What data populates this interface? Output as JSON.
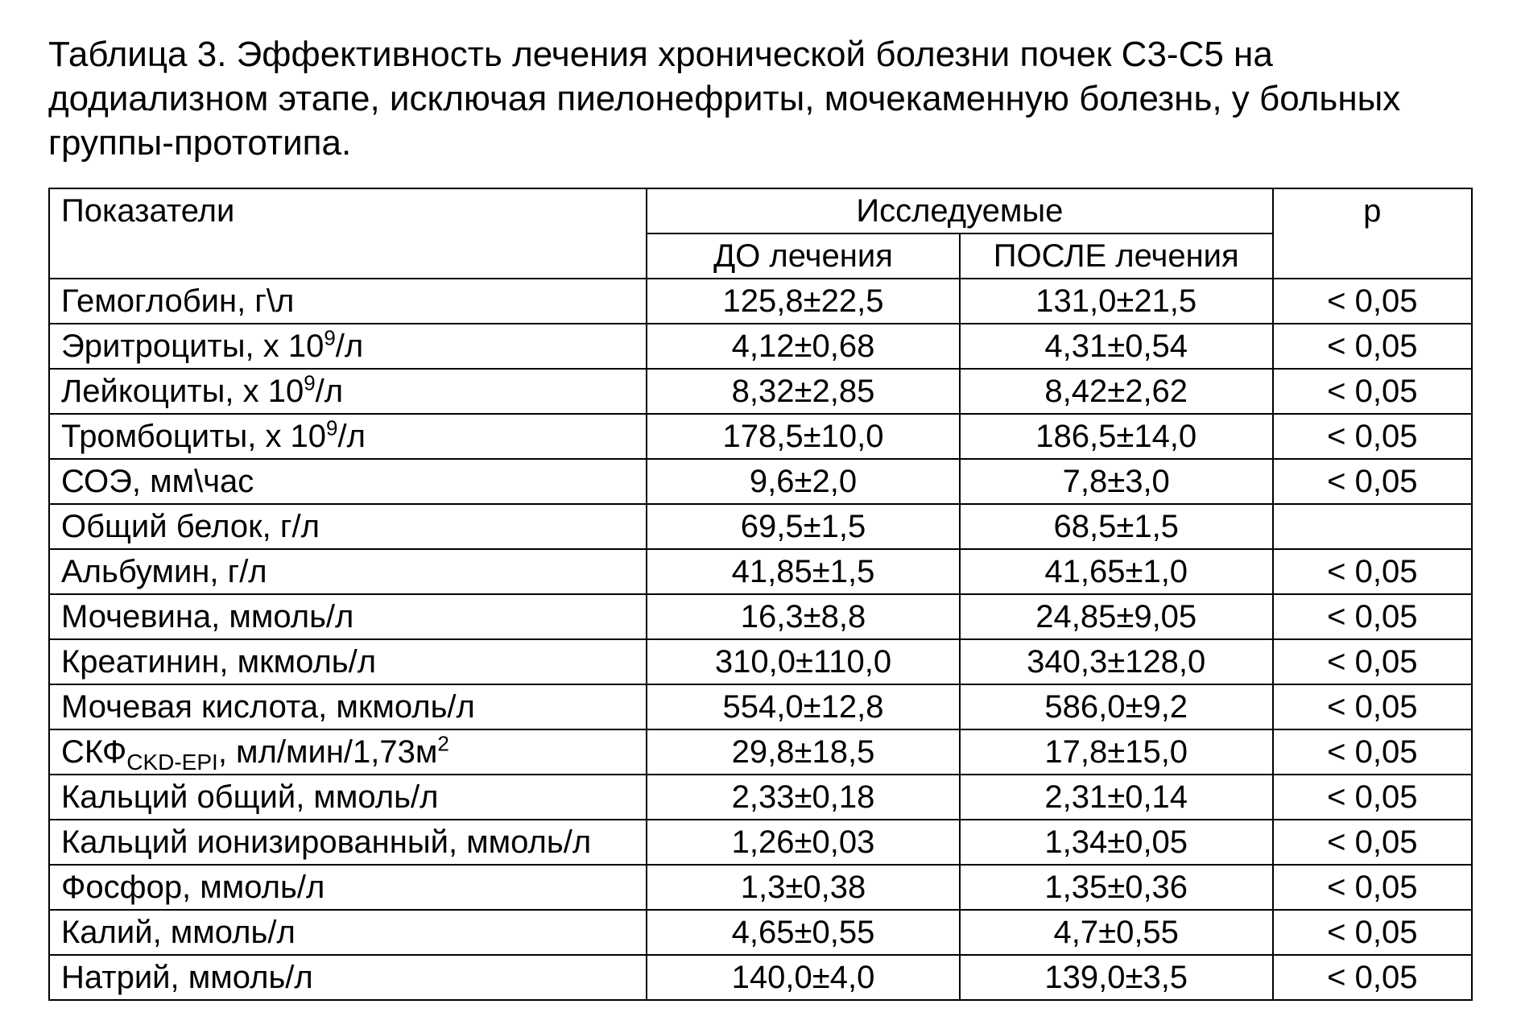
{
  "caption": "Таблица 3. Эффективность лечения хронической болезни почек С3-С5 на додиализном этапе, исключая пиелонефриты, мочекаменную болезнь, у больных группы-прототипа.",
  "headers": {
    "col_indicator": "Показатели",
    "col_group": "Исследуемые",
    "col_before": "ДО лечения",
    "col_after": "ПОСЛЕ лечения",
    "col_p": "p"
  },
  "table": {
    "background_color": "#ffffff",
    "border_color": "#000000",
    "font_size_pt": 30,
    "column_widths_percent": [
      42,
      22,
      22,
      14
    ],
    "rows": [
      {
        "label_html": "Гемоглобин, г\\л",
        "before": "125,8±22,5",
        "after": "131,0±21,5",
        "p": "< 0,05"
      },
      {
        "label_html": "Эритроциты, х 10<sup>9</sup>/л",
        "before": "4,12±0,68",
        "after": "4,31±0,54",
        "p": "< 0,05"
      },
      {
        "label_html": "Лейкоциты, х 10<sup>9</sup>/л",
        "before": "8,32±2,85",
        "after": "8,42±2,62",
        "p": "< 0,05"
      },
      {
        "label_html": "Тромбоциты, х 10<sup>9</sup>/л",
        "before": "178,5±10,0",
        "after": "186,5±14,0",
        "p": "< 0,05"
      },
      {
        "label_html": "СОЭ, мм\\час",
        "before": "9,6±2,0",
        "after": "7,8±3,0",
        "p": "< 0,05"
      },
      {
        "label_html": "Общий белок, г/л",
        "before": "69,5±1,5",
        "after": "68,5±1,5",
        "p": ""
      },
      {
        "label_html": "Альбумин, г/л",
        "before": "41,85±1,5",
        "after": "41,65±1,0",
        "p": "< 0,05"
      },
      {
        "label_html": "Мочевина, ммоль/л",
        "before": "16,3±8,8",
        "after": "24,85±9,05",
        "p": "< 0,05"
      },
      {
        "label_html": "Креатинин, мкмоль/л",
        "before": "310,0±110,0",
        "after": "340,3±128,0",
        "p": "< 0,05"
      },
      {
        "label_html": "Мочевая кислота, мкмоль/л",
        "before": "554,0±12,8",
        "after": "586,0±9,2",
        "p": "< 0,05"
      },
      {
        "label_html": "СКФ<sub>CKD-EPI</sub>, мл/мин/1,73м<sup>2</sup>",
        "before": "29,8±18,5",
        "after": "17,8±15,0",
        "p": "< 0,05"
      },
      {
        "label_html": "Кальций общий, ммоль/л",
        "before": "2,33±0,18",
        "after": "2,31±0,14",
        "p": "< 0,05"
      },
      {
        "label_html": "Кальций ионизированный, ммоль/л",
        "before": "1,26±0,03",
        "after": "1,34±0,05",
        "p": "< 0,05"
      },
      {
        "label_html": "Фосфор, ммоль/л",
        "before": "1,3±0,38",
        "after": "1,35±0,36",
        "p": "< 0,05"
      },
      {
        "label_html": "Калий, ммоль/л",
        "before": "4,65±0,55",
        "after": "4,7±0,55",
        "p": "< 0,05"
      },
      {
        "label_html": "Натрий, ммоль/л",
        "before": "140,0±4,0",
        "after": "139,0±3,5",
        "p": "< 0,05"
      }
    ]
  }
}
